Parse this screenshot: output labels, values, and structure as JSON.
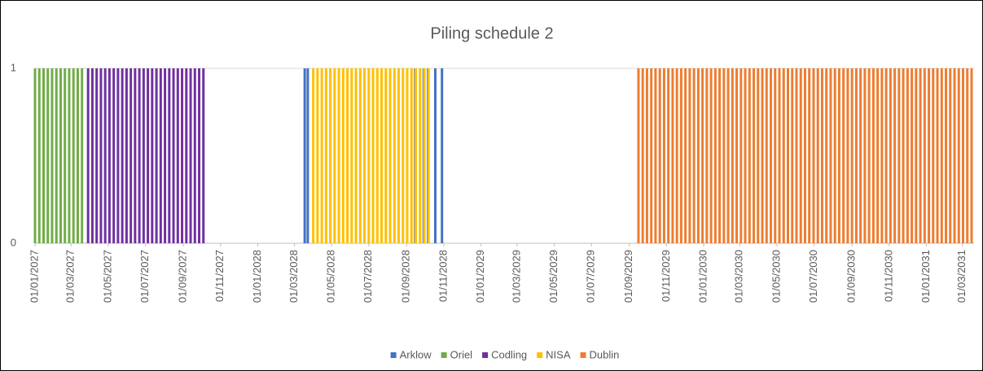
{
  "chart_data": {
    "type": "bar",
    "title": "Piling schedule 2",
    "xlim": [
      "01/01/2027",
      "20/03/2031"
    ],
    "xticks": [
      "01/01/2027",
      "01/03/2027",
      "01/05/2027",
      "01/07/2027",
      "01/09/2027",
      "01/11/2027",
      "01/01/2028",
      "01/03/2028",
      "01/05/2028",
      "01/07/2028",
      "01/09/2028",
      "01/11/2028",
      "01/01/2029",
      "01/03/2029",
      "01/05/2029",
      "01/07/2029",
      "01/09/2029",
      "01/11/2029",
      "01/01/2030",
      "01/03/2030",
      "01/05/2030",
      "01/07/2030",
      "01/09/2030",
      "01/11/2030",
      "01/01/2031",
      "01/03/2031"
    ],
    "ylim": [
      0,
      1
    ],
    "yticks": [
      0,
      1
    ],
    "grid": true,
    "legend": "bottom",
    "series": [
      {
        "name": "Arklow",
        "color": "#4472c4",
        "x": [
          "18/03/2028",
          "23/03/2028",
          "15/09/2028",
          "29/09/2028",
          "06/10/2028",
          "18/10/2028",
          "29/10/2028"
        ],
        "values": [
          1,
          1,
          1,
          1,
          1,
          1,
          1
        ]
      },
      {
        "name": "Oriel",
        "color": "#70ad47",
        "x": [
          "01/01/2027",
          "08/01/2027",
          "15/01/2027",
          "22/01/2027",
          "29/01/2027",
          "05/02/2027",
          "12/02/2027",
          "19/02/2027",
          "26/02/2027",
          "05/03/2027",
          "12/03/2027",
          "19/03/2027"
        ],
        "values": [
          1,
          1,
          1,
          1,
          1,
          1,
          1,
          1,
          1,
          1,
          1,
          1
        ]
      },
      {
        "name": "Codling",
        "color": "#7030a0",
        "x": [
          "29/03/2027",
          "05/04/2027",
          "12/04/2027",
          "19/04/2027",
          "26/04/2027",
          "03/05/2027",
          "10/05/2027",
          "17/05/2027",
          "24/05/2027",
          "31/05/2027",
          "07/06/2027",
          "14/06/2027",
          "21/06/2027",
          "28/06/2027",
          "05/07/2027",
          "12/07/2027",
          "19/07/2027",
          "26/07/2027",
          "02/08/2027",
          "09/08/2027",
          "16/08/2027",
          "23/08/2027",
          "30/08/2027",
          "06/09/2027",
          "13/09/2027",
          "20/09/2027",
          "27/09/2027",
          "04/10/2027"
        ],
        "values": [
          1,
          1,
          1,
          1,
          1,
          1,
          1,
          1,
          1,
          1,
          1,
          1,
          1,
          1,
          1,
          1,
          1,
          1,
          1,
          1,
          1,
          1,
          1,
          1,
          1,
          1,
          1,
          1
        ]
      },
      {
        "name": "NISA",
        "color": "#ffc000",
        "x": [
          "01/04/2028",
          "08/04/2028",
          "15/04/2028",
          "22/04/2028",
          "29/04/2028",
          "06/05/2028",
          "13/05/2028",
          "20/05/2028",
          "27/05/2028",
          "03/06/2028",
          "10/06/2028",
          "17/06/2028",
          "24/06/2028",
          "01/07/2028",
          "08/07/2028",
          "15/07/2028",
          "22/07/2028",
          "29/07/2028",
          "05/08/2028",
          "12/08/2028",
          "19/08/2028",
          "26/08/2028",
          "02/09/2028",
          "09/09/2028",
          "16/09/2028",
          "23/09/2028",
          "30/09/2028",
          "07/10/2028"
        ],
        "values": [
          1,
          1,
          1,
          1,
          1,
          1,
          1,
          1,
          1,
          1,
          1,
          1,
          1,
          1,
          1,
          1,
          1,
          1,
          1,
          1,
          1,
          1,
          1,
          1,
          1,
          1,
          1,
          1
        ]
      },
      {
        "name": "Dublin",
        "color": "#ed7d31",
        "x": [
          "16/09/2029",
          "23/09/2029",
          "30/09/2029",
          "07/10/2029",
          "14/10/2029",
          "21/10/2029",
          "28/10/2029",
          "04/11/2029",
          "11/11/2029",
          "18/11/2029",
          "25/11/2029",
          "02/12/2029",
          "09/12/2029",
          "16/12/2029",
          "23/12/2029",
          "30/12/2029",
          "06/01/2030",
          "13/01/2030",
          "20/01/2030",
          "27/01/2030",
          "03/02/2030",
          "10/02/2030",
          "17/02/2030",
          "24/02/2030",
          "03/03/2030",
          "10/03/2030",
          "17/03/2030",
          "24/03/2030",
          "31/03/2030",
          "07/04/2030",
          "14/04/2030",
          "21/04/2030",
          "28/04/2030",
          "05/05/2030",
          "12/05/2030",
          "19/05/2030",
          "26/05/2030",
          "02/06/2030",
          "09/06/2030",
          "16/06/2030",
          "23/06/2030",
          "30/06/2030",
          "07/07/2030",
          "14/07/2030",
          "21/07/2030",
          "28/07/2030",
          "04/08/2030",
          "11/08/2030",
          "18/08/2030",
          "25/08/2030",
          "01/09/2030",
          "08/09/2030",
          "15/09/2030",
          "22/09/2030",
          "29/09/2030",
          "06/10/2030",
          "13/10/2030",
          "20/10/2030",
          "27/10/2030",
          "03/11/2030",
          "10/11/2030",
          "17/11/2030",
          "24/11/2030",
          "01/12/2030",
          "08/12/2030",
          "15/12/2030",
          "22/12/2030",
          "29/12/2030",
          "05/01/2031",
          "12/01/2031",
          "19/01/2031",
          "26/01/2031",
          "02/02/2031",
          "09/02/2031",
          "16/02/2031",
          "23/02/2031",
          "02/03/2031",
          "09/03/2031",
          "16/03/2031"
        ],
        "values": [
          1,
          1,
          1,
          1,
          1,
          1,
          1,
          1,
          1,
          1,
          1,
          1,
          1,
          1,
          1,
          1,
          1,
          1,
          1,
          1,
          1,
          1,
          1,
          1,
          1,
          1,
          1,
          1,
          1,
          1,
          1,
          1,
          1,
          1,
          1,
          1,
          1,
          1,
          1,
          1,
          1,
          1,
          1,
          1,
          1,
          1,
          1,
          1,
          1,
          1,
          1,
          1,
          1,
          1,
          1,
          1,
          1,
          1,
          1,
          1,
          1,
          1,
          1,
          1,
          1,
          1,
          1,
          1,
          1,
          1,
          1,
          1,
          1,
          1,
          1,
          1,
          1,
          1,
          1
        ]
      }
    ]
  }
}
